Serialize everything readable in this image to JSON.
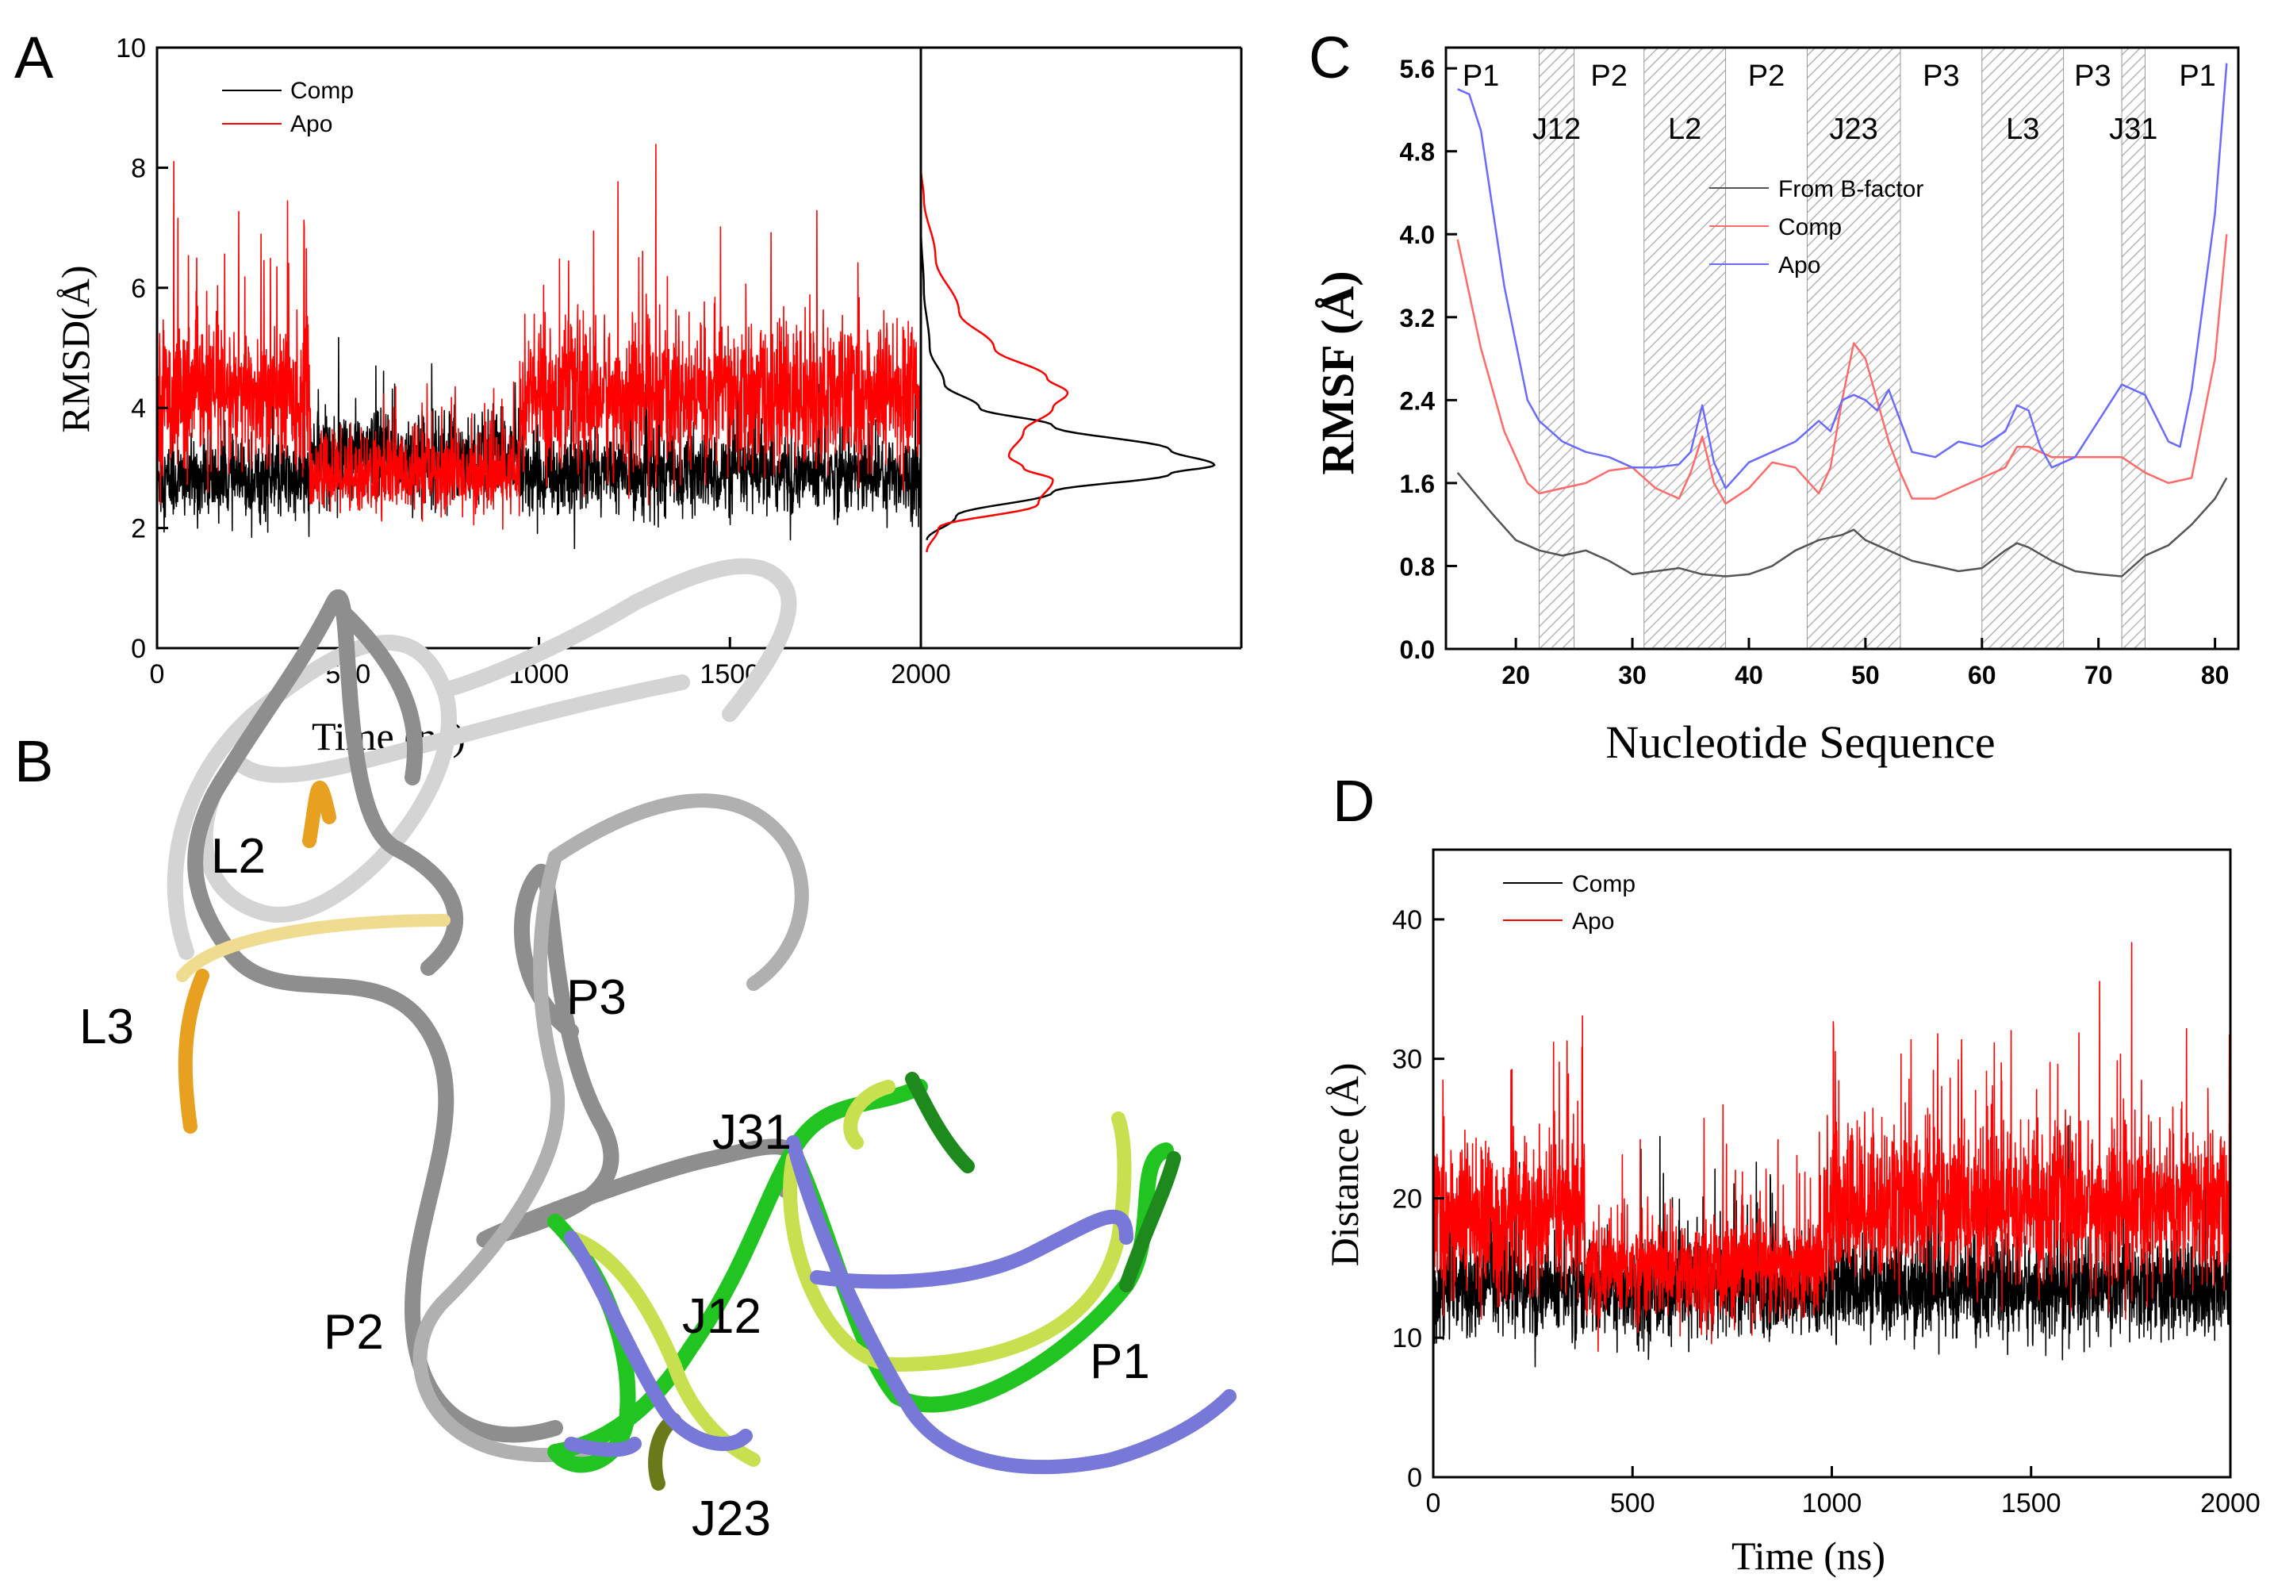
{
  "colors": {
    "comp": "#000000",
    "apo": "#ff0000",
    "apo_rmsf": "#6a6aff",
    "comp_rmsf": "#ff6a6a",
    "bfactor": "#555555",
    "hatch": "#b5b5b5"
  },
  "panel_labels": {
    "a": "A",
    "b": "B",
    "c": "C",
    "d": "D"
  },
  "chart_data": [
    {
      "id": "A",
      "type": "line",
      "title": "",
      "xlabel": "Time (ns)",
      "ylabel": "RMSD(Å)",
      "xlim": [
        0,
        2000
      ],
      "ylim": [
        0,
        10
      ],
      "xticks": [
        0,
        500,
        1000,
        1500,
        2000
      ],
      "xtick_labels": [
        "0",
        "500",
        "1000",
        "1500",
        "2000"
      ],
      "yticks": [
        0,
        2,
        4,
        6,
        8,
        10
      ],
      "ytick_labels": [
        "0",
        "2",
        "4",
        "6",
        "8",
        "10"
      ],
      "legend": [
        "Comp",
        "Apo"
      ],
      "legend_position": "top-left",
      "series": [
        {
          "name": "Comp",
          "segments": [
            {
              "from": 0,
              "to": 400,
              "mean": 2.8,
              "spread": 0.55
            },
            {
              "from": 400,
              "to": 950,
              "mean": 3.2,
              "spread": 0.6
            },
            {
              "from": 950,
              "to": 2000,
              "mean": 2.9,
              "spread": 0.55
            }
          ]
        },
        {
          "name": "Apo",
          "segments": [
            {
              "from": 0,
              "to": 400,
              "mean": 4.2,
              "spread": 1.0
            },
            {
              "from": 400,
              "to": 950,
              "mean": 2.9,
              "spread": 0.55
            },
            {
              "from": 950,
              "to": 2000,
              "mean": 4.2,
              "spread": 1.0
            }
          ]
        }
      ],
      "distribution": {
        "Comp": {
          "y": [
            1.8,
            2.2,
            2.6,
            2.9,
            3.05,
            3.3,
            3.7,
            4.0,
            4.4,
            5.0,
            6.0,
            7.0
          ],
          "density": [
            0.02,
            0.12,
            0.45,
            0.85,
            1.0,
            0.85,
            0.45,
            0.2,
            0.08,
            0.03,
            0.01,
            0.0
          ]
        },
        "Apo": {
          "y": [
            1.6,
            2.0,
            2.4,
            2.8,
            3.0,
            3.2,
            3.6,
            4.0,
            4.25,
            4.5,
            5.0,
            5.6,
            6.5,
            7.5,
            8.0
          ],
          "density": [
            0.02,
            0.06,
            0.4,
            0.45,
            0.35,
            0.3,
            0.35,
            0.45,
            0.5,
            0.43,
            0.25,
            0.13,
            0.05,
            0.01,
            0.0
          ]
        }
      }
    },
    {
      "id": "C",
      "type": "line",
      "xlabel": "Nucleotide Sequence",
      "ylabel": "RMSF (Å)",
      "xlim": [
        14,
        82
      ],
      "ylim": [
        0,
        5.8
      ],
      "xticks": [
        20,
        30,
        40,
        50,
        60,
        70,
        80
      ],
      "xtick_labels": [
        "20",
        "30",
        "40",
        "50",
        "60",
        "70",
        "80"
      ],
      "yticks": [
        0,
        0.8,
        1.6,
        2.4,
        3.2,
        4.0,
        4.8,
        5.6
      ],
      "ytick_labels": [
        "0.0",
        "0.8",
        "1.6",
        "2.4",
        "3.2",
        "4.0",
        "4.8",
        "5.6"
      ],
      "legend": [
        "From B-factor",
        "Comp",
        "Apo"
      ],
      "legend_position": "top-center",
      "shaded_regions": [
        {
          "label": "J12",
          "from": 22,
          "to": 25
        },
        {
          "label": "L2",
          "from": 31,
          "to": 38
        },
        {
          "label": "J23",
          "from": 45,
          "to": 53
        },
        {
          "label": "L3",
          "from": 60,
          "to": 67
        },
        {
          "label": "J31",
          "from": 72,
          "to": 74
        }
      ],
      "segment_labels": [
        {
          "label": "P1",
          "x": 17,
          "row": "top"
        },
        {
          "label": "J12",
          "x": 23.5,
          "row": "low"
        },
        {
          "label": "P2",
          "x": 28,
          "row": "top"
        },
        {
          "label": "L2",
          "x": 34.5,
          "row": "low"
        },
        {
          "label": "P2",
          "x": 41.5,
          "row": "top"
        },
        {
          "label": "J23",
          "x": 49,
          "row": "low"
        },
        {
          "label": "P3",
          "x": 56.5,
          "row": "top"
        },
        {
          "label": "L3",
          "x": 63.5,
          "row": "low"
        },
        {
          "label": "P3",
          "x": 69.5,
          "row": "top"
        },
        {
          "label": "J31",
          "x": 73,
          "row": "low"
        },
        {
          "label": "P1",
          "x": 78.5,
          "row": "top"
        }
      ],
      "series": [
        {
          "name": "From B-factor",
          "x": [
            15,
            18,
            20,
            22,
            24,
            26,
            28,
            30,
            32,
            34,
            36,
            38,
            40,
            42,
            44,
            46,
            48,
            49,
            50,
            52,
            54,
            56,
            58,
            60,
            62,
            63,
            64,
            66,
            68,
            70,
            72,
            74,
            76,
            78,
            80,
            81
          ],
          "y": [
            1.7,
            1.3,
            1.05,
            0.95,
            0.9,
            0.95,
            0.85,
            0.72,
            0.75,
            0.78,
            0.72,
            0.7,
            0.72,
            0.8,
            0.95,
            1.05,
            1.1,
            1.15,
            1.05,
            0.95,
            0.85,
            0.8,
            0.75,
            0.78,
            0.95,
            1.02,
            0.98,
            0.85,
            0.75,
            0.72,
            0.7,
            0.9,
            1.0,
            1.2,
            1.45,
            1.65
          ]
        },
        {
          "name": "Comp",
          "x": [
            15,
            17,
            19,
            21,
            22,
            24,
            26,
            28,
            30,
            32,
            34,
            35,
            36,
            37,
            38,
            40,
            42,
            44,
            46,
            47,
            48,
            49,
            50,
            51,
            52,
            53,
            54,
            56,
            58,
            60,
            62,
            63,
            64,
            66,
            68,
            70,
            72,
            74,
            76,
            78,
            80,
            81
          ],
          "y": [
            3.95,
            2.9,
            2.1,
            1.6,
            1.5,
            1.55,
            1.6,
            1.72,
            1.75,
            1.55,
            1.45,
            1.7,
            2.05,
            1.6,
            1.4,
            1.55,
            1.8,
            1.75,
            1.5,
            1.75,
            2.4,
            2.95,
            2.8,
            2.4,
            2.0,
            1.7,
            1.45,
            1.45,
            1.55,
            1.65,
            1.75,
            1.95,
            1.95,
            1.85,
            1.85,
            1.85,
            1.85,
            1.7,
            1.6,
            1.65,
            2.8,
            4.0
          ]
        },
        {
          "name": "Apo",
          "x": [
            15,
            16,
            17,
            19,
            21,
            22,
            24,
            26,
            28,
            30,
            32,
            34,
            35,
            36,
            37,
            38,
            40,
            42,
            44,
            46,
            47,
            48,
            49,
            50,
            51,
            52,
            53,
            54,
            56,
            58,
            60,
            62,
            63,
            64,
            65,
            66,
            68,
            70,
            72,
            74,
            76,
            77,
            78,
            80,
            81
          ],
          "y": [
            5.4,
            5.35,
            5.0,
            3.5,
            2.4,
            2.2,
            2.0,
            1.9,
            1.85,
            1.75,
            1.75,
            1.78,
            1.9,
            2.35,
            1.8,
            1.55,
            1.8,
            1.9,
            2.0,
            2.2,
            2.1,
            2.4,
            2.45,
            2.4,
            2.3,
            2.5,
            2.2,
            1.9,
            1.85,
            2.0,
            1.95,
            2.1,
            2.35,
            2.3,
            1.95,
            1.75,
            1.85,
            2.2,
            2.55,
            2.45,
            2.0,
            1.95,
            2.5,
            4.2,
            5.65
          ]
        }
      ]
    },
    {
      "id": "D",
      "type": "line",
      "xlabel": "Time (ns)",
      "ylabel": "Distance (Å)",
      "xlim": [
        0,
        2000
      ],
      "ylim": [
        0,
        45
      ],
      "xticks": [
        0,
        500,
        1000,
        1500,
        2000
      ],
      "xtick_labels": [
        "0",
        "500",
        "1000",
        "1500",
        "2000"
      ],
      "yticks": [
        0,
        10,
        20,
        30,
        40
      ],
      "ytick_labels": [
        "0",
        "10",
        "20",
        "30",
        "40"
      ],
      "legend": [
        "Comp",
        "Apo"
      ],
      "legend_position": "top-left",
      "series": [
        {
          "name": "Comp",
          "segments": [
            {
              "from": 0,
              "to": 380,
              "mean": 13.5,
              "spread": 2.8
            },
            {
              "from": 380,
              "to": 980,
              "mean": 13.5,
              "spread": 2.8
            },
            {
              "from": 980,
              "to": 2000,
              "mean": 13.5,
              "spread": 2.8
            }
          ]
        },
        {
          "name": "Apo",
          "segments": [
            {
              "from": 0,
              "to": 380,
              "mean": 18.5,
              "spread": 4.5
            },
            {
              "from": 380,
              "to": 980,
              "mean": 15.0,
              "spread": 3.0
            },
            {
              "from": 980,
              "to": 2000,
              "mean": 19.5,
              "spread": 4.5
            }
          ]
        }
      ]
    }
  ],
  "structure": {
    "labels": [
      "L2",
      "L3",
      "P3",
      "J31",
      "J12",
      "P2",
      "P1",
      "J23"
    ],
    "colors": {
      "grey_dark": "#8a8a8a",
      "grey_light": "#d2d2d2",
      "orange": "#e8a020",
      "yellow_light": "#f0dc90",
      "green": "#22c422",
      "green_dark": "#1e8a1e",
      "yellow_green": "#c8e050",
      "olive": "#6a7a1a",
      "blue": "#7878d8"
    }
  }
}
